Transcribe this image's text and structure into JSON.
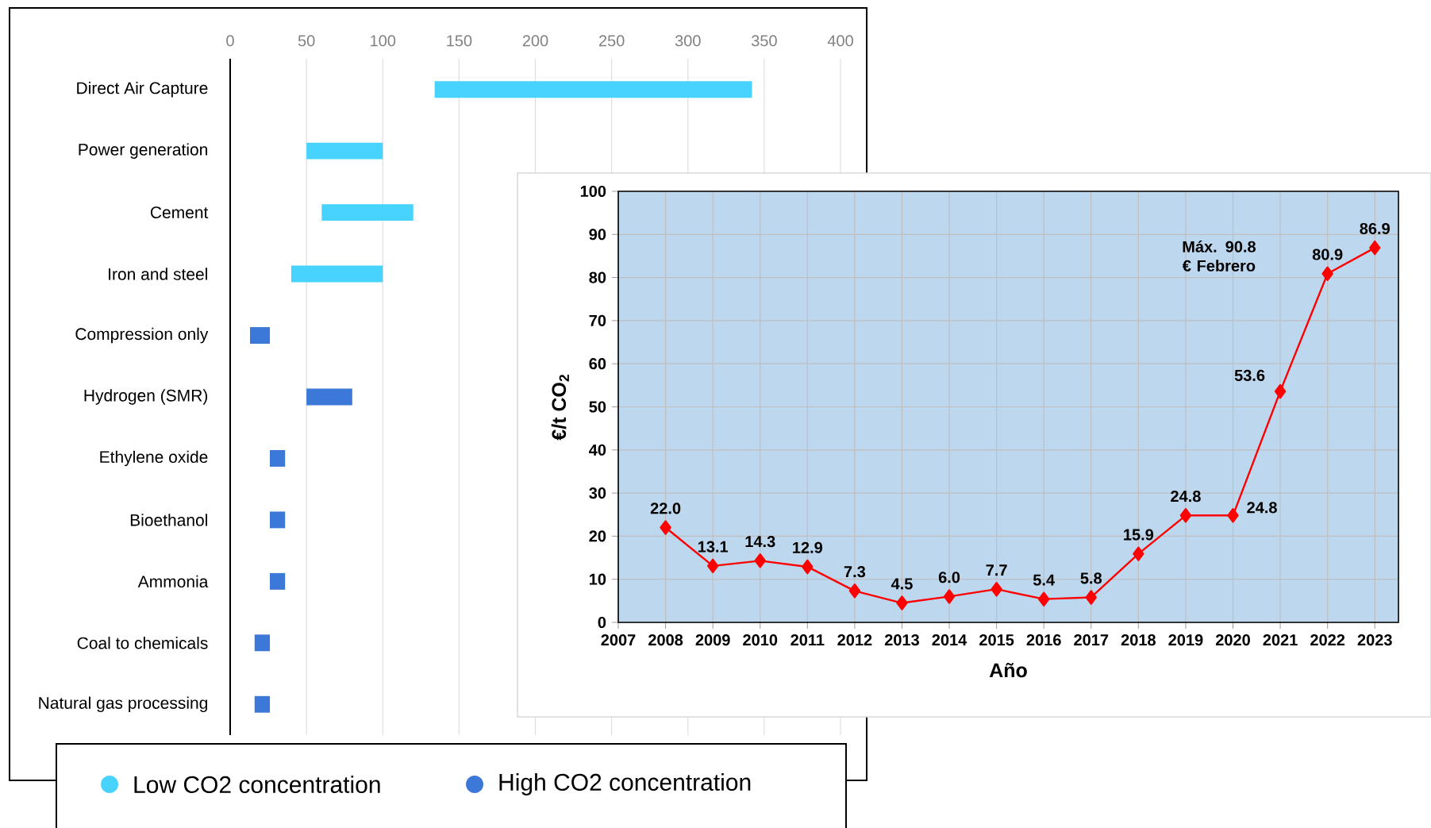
{
  "chart_data": [
    {
      "type": "bar",
      "orientation": "horizontal",
      "categories": [
        "Direct Air Capture",
        "Power generation",
        "Cement",
        "Iron and steel",
        "Compression only",
        "Hydrogen (SMR)",
        "Ethylene oxide",
        "Bioethanol",
        "Ammonia",
        "Coal to chemicals",
        "Natural gas processing"
      ],
      "series": [
        {
          "name": "Low CO2 concentration",
          "color": "#48d3fe",
          "base": [
            134,
            50,
            60,
            40,
            null,
            null,
            null,
            null,
            null,
            null,
            null
          ],
          "values": [
            208,
            50,
            60,
            60,
            null,
            null,
            null,
            null,
            null,
            null,
            null
          ]
        },
        {
          "name": "High CO2 concentration",
          "color": "#3c78d8",
          "base": [
            null,
            null,
            null,
            null,
            13,
            50,
            26,
            26,
            26,
            16,
            16
          ],
          "values": [
            null,
            null,
            null,
            null,
            13,
            30,
            10,
            10,
            10,
            10,
            10
          ]
        }
      ],
      "xlim": [
        0,
        400
      ],
      "xticks": [
        0,
        50,
        100,
        150,
        200,
        250,
        300,
        350,
        400
      ],
      "grid": "x",
      "legend": "bottom"
    },
    {
      "type": "line",
      "xlabel": "Año",
      "ylabel": "€/t CO$_{2}$",
      "x": [
        2008,
        2009,
        2010,
        2011,
        2012,
        2013,
        2014,
        2015,
        2016,
        2017,
        2018,
        2019,
        2020,
        2021,
        2022,
        2023
      ],
      "series": [
        {
          "color": "#ff0000",
          "values": [
            22.0,
            13.1,
            14.3,
            12.9,
            7.3,
            4.5,
            6.0,
            7.7,
            5.4,
            5.8,
            15.9,
            24.8,
            24.8,
            53.6,
            80.9,
            86.9
          ],
          "value_labels": [
            "22.0",
            "13.1",
            "14.3",
            "12.9",
            "7.3",
            "4.5",
            "6.0",
            "7.7",
            "5.4",
            "5.8",
            "15.9",
            "24.8",
            "24.8",
            "53.6",
            "80.9",
            "86.9"
          ]
        }
      ],
      "xlim": [
        2007,
        2023.5
      ],
      "xticks": [
        2007,
        2008,
        2009,
        2010,
        2011,
        2012,
        2013,
        2014,
        2015,
        2016,
        2017,
        2018,
        2019,
        2020,
        2021,
        2022,
        2023
      ],
      "ylim": [
        0,
        100
      ],
      "yticks": [
        0,
        10,
        20,
        30,
        40,
        50,
        60,
        70,
        80,
        90,
        100
      ],
      "grid": true,
      "marker": "diamond",
      "annotations": [
        "Máx. 90.8 € Febrero"
      ]
    }
  ]
}
